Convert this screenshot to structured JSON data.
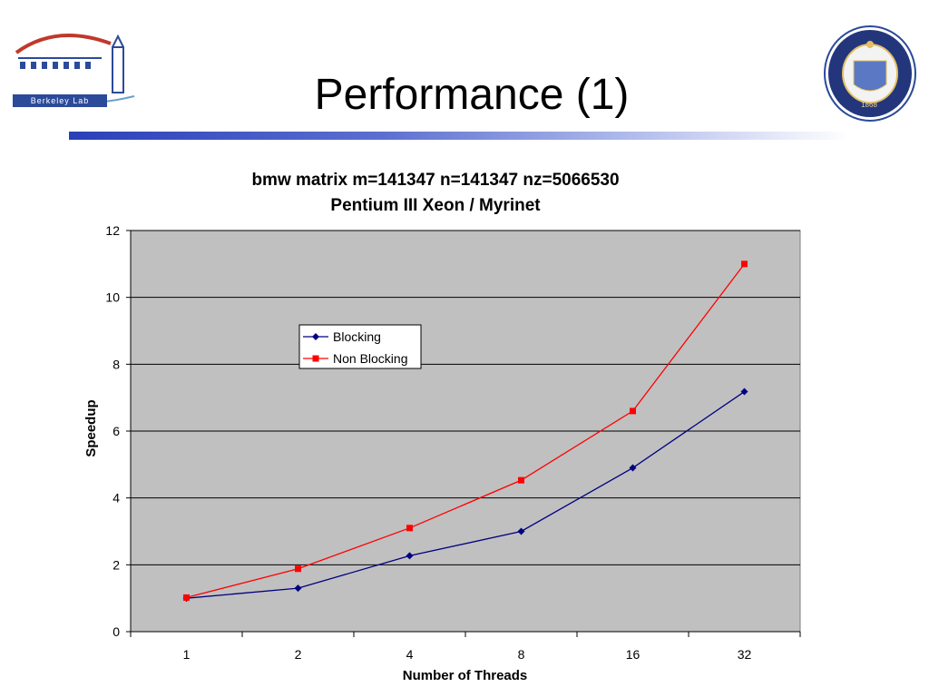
{
  "slide": {
    "title": "Performance (1)",
    "logo_left_text": "Berkeley Lab",
    "logo_right_text": "1868"
  },
  "colors": {
    "plot_bg": "#c0c0c0",
    "blocking": "#000080",
    "non_blocking": "#ff0000",
    "rule_start": "#2a3fb8"
  },
  "chart_data": {
    "type": "line",
    "title": "bmw matrix m=141347 n=141347 nz=5066530",
    "subtitle": "Pentium III Xeon / Myrinet",
    "xlabel": "Number of Threads",
    "ylabel": "Speedup",
    "categories": [
      "1",
      "2",
      "4",
      "8",
      "16",
      "32"
    ],
    "ylim": [
      0,
      12
    ],
    "yticks": [
      "0",
      "2",
      "4",
      "6",
      "8",
      "10",
      "12"
    ],
    "grid": true,
    "legend_position": "upper-middle",
    "series": [
      {
        "name": "Blocking",
        "values": [
          1.0,
          1.3,
          2.27,
          3.0,
          4.9,
          7.18
        ]
      },
      {
        "name": "Non Blocking",
        "values": [
          1.02,
          1.88,
          3.1,
          4.53,
          6.6,
          11.0
        ]
      }
    ]
  }
}
